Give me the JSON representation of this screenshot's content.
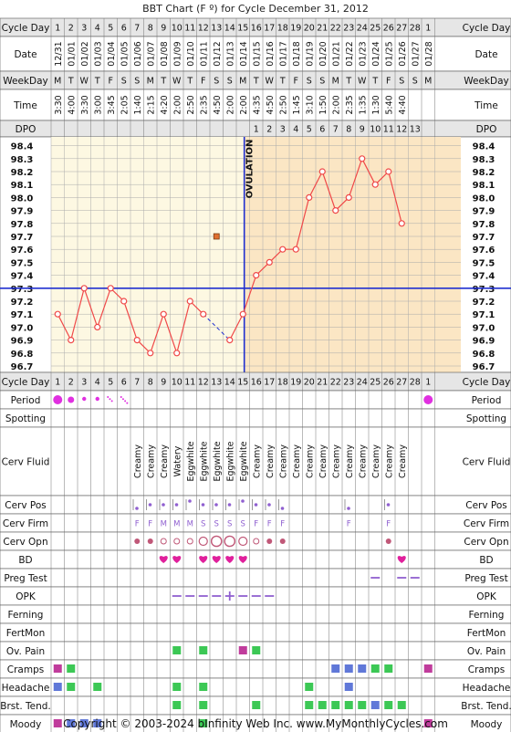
{
  "title": "BBT Chart (F º) for Cycle December 31, 2012",
  "copyright": "Copyright © 2003-2024 bInfinity Web Inc.    www.MyMonthlyCycles.com",
  "labels": {
    "cycle_day": "Cycle Day",
    "date": "Date",
    "weekday": "WeekDay",
    "time": "Time",
    "dpo": "DPO",
    "period": "Period",
    "spotting": "Spotting",
    "cerv_fluid": "Cerv Fluid",
    "cerv_pos": "Cerv Pos",
    "cerv_firm": "Cerv Firm",
    "cerv_opn": "Cerv Opn",
    "bd": "BD",
    "preg_test": "Preg Test",
    "opk": "OPK",
    "ferning": "Ferning",
    "fertmon": "FertMon",
    "ov_pain": "Ov. Pain",
    "cramps": "Cramps",
    "headache": "Headache",
    "brst_tend": "Brst. Tend.",
    "moody": "Moody",
    "ovulation": "OVULATION"
  },
  "colors": {
    "grid_bg": "#fdf8e2",
    "post_ov_bg": "#fbe6c4",
    "header_bg": "#e6e6e6",
    "temp_line": "#f04848",
    "coverline": "#2030d0",
    "ov_line": "#2030d0",
    "green": "#3cc855",
    "purple": "#c03c9c",
    "blue": "#6078d8",
    "period": "#e030e0",
    "heart": "#e0209c",
    "lilac": "#9060d0",
    "orange": "#e07030"
  },
  "days": [
    "1",
    "2",
    "3",
    "4",
    "5",
    "6",
    "7",
    "8",
    "9",
    "10",
    "11",
    "12",
    "13",
    "14",
    "15",
    "16",
    "17",
    "18",
    "19",
    "20",
    "21",
    "22",
    "23",
    "24",
    "25",
    "26",
    "27",
    "28",
    "1"
  ],
  "dates": [
    "12/31",
    "01/01",
    "01/02",
    "01/03",
    "01/04",
    "01/05",
    "01/06",
    "01/07",
    "01/08",
    "01/09",
    "01/10",
    "01/11",
    "01/12",
    "01/13",
    "01/14",
    "01/15",
    "01/16",
    "01/17",
    "01/18",
    "01/19",
    "01/20",
    "01/21",
    "01/22",
    "01/23",
    "01/24",
    "01/25",
    "01/26",
    "01/27",
    "01/28"
  ],
  "weekdays": [
    "M",
    "T",
    "W",
    "T",
    "F",
    "S",
    "S",
    "M",
    "T",
    "W",
    "T",
    "F",
    "S",
    "S",
    "M",
    "T",
    "W",
    "T",
    "F",
    "S",
    "S",
    "M",
    "T",
    "W",
    "T",
    "F",
    "S",
    "S",
    "M"
  ],
  "times": [
    "3:30",
    "4:00",
    "3:30",
    "3:00",
    "3:45",
    "2:05",
    "1:40",
    "2:15",
    "4:20",
    "2:00",
    "2:50",
    "2:35",
    "4:50",
    "2:00",
    "2:00",
    "4:35",
    "4:50",
    "2:50",
    "1:45",
    "3:10",
    "1:50",
    "2:00",
    "2:35",
    "1:35",
    "1:30",
    "5:40",
    "4:40",
    "",
    ""
  ],
  "dpo": [
    "",
    "",
    "",
    "",
    "",
    "",
    "",
    "",
    "",
    "",
    "",
    "",
    "",
    "",
    "",
    "1",
    "2",
    "3",
    "4",
    "5",
    "6",
    "7",
    "8",
    "9",
    "10",
    "11",
    "12",
    "13",
    ""
  ],
  "cerv_fluid": [
    "",
    "",
    "",
    "",
    "",
    "",
    "Creamy",
    "Creamy",
    "Creamy",
    "Watery",
    "Eggwhite",
    "Eggwhite",
    "Eggwhite",
    "Eggwhite",
    "Eggwhite",
    "Creamy",
    "Creamy",
    "Creamy",
    "Creamy",
    "Creamy",
    "Creamy",
    "Creamy",
    "Creamy",
    "Creamy",
    "Creamy",
    "Creamy",
    "Creamy",
    "",
    ""
  ],
  "cerv_firm": [
    "",
    "",
    "",
    "",
    "",
    "",
    "F",
    "F",
    "M",
    "M",
    "M",
    "S",
    "S",
    "S",
    "S",
    "F",
    "F",
    "F",
    "",
    "",
    "",
    "",
    "F",
    "",
    "",
    "F",
    "",
    "",
    ""
  ],
  "period": [
    3,
    2,
    1,
    1,
    4,
    5,
    0,
    0,
    0,
    0,
    0,
    0,
    0,
    0,
    0,
    0,
    0,
    0,
    0,
    0,
    0,
    0,
    0,
    0,
    0,
    0,
    0,
    0,
    3
  ],
  "cerv_pos": [
    0,
    0,
    0,
    0,
    0,
    0,
    1,
    2,
    2,
    2,
    3,
    2,
    2,
    2,
    3,
    2,
    2,
    1,
    0,
    0,
    0,
    0,
    1,
    0,
    0,
    2,
    0,
    0,
    0
  ],
  "cerv_opn": [
    0,
    0,
    0,
    0,
    0,
    0,
    1,
    1,
    2,
    2,
    2,
    3,
    4,
    4,
    3,
    2,
    1,
    1,
    0,
    0,
    0,
    0,
    0,
    0,
    0,
    1,
    0,
    0,
    0
  ],
  "bd": [
    9,
    10,
    12,
    13,
    14,
    15,
    27
  ],
  "preg_test": [
    25,
    27,
    28
  ],
  "opk": [
    "",
    "",
    "",
    "",
    "",
    "",
    "",
    "",
    "",
    "-",
    "-",
    "-",
    "-",
    "+",
    "-",
    "-",
    "-",
    "",
    "",
    "",
    "",
    "",
    "",
    "",
    "",
    "",
    "",
    "",
    ""
  ],
  "ov_pain": {
    "green": [
      10,
      12,
      16
    ],
    "purple": [
      15
    ]
  },
  "cramps": {
    "purple": [
      1,
      29
    ],
    "green": [
      2,
      25,
      26
    ],
    "blue": [
      22,
      23,
      24
    ]
  },
  "headache": {
    "blue": [
      1,
      23
    ],
    "green": [
      2,
      4,
      10,
      12,
      20
    ],
    "purple": []
  },
  "brst_tend": {
    "green": [
      10,
      12,
      16,
      20,
      21,
      22,
      23,
      24,
      26,
      27
    ],
    "blue": [
      25
    ],
    "purple": []
  },
  "moody": {
    "purple": [
      1,
      29
    ],
    "blue": [
      2,
      3,
      4
    ],
    "green": [
      12
    ]
  },
  "chart_data": {
    "type": "line",
    "title": "BBT Chart (F º) for Cycle December 31, 2012",
    "x": [
      1,
      2,
      3,
      4,
      5,
      6,
      7,
      8,
      9,
      10,
      11,
      12,
      13,
      14,
      15,
      16,
      17,
      18,
      19,
      20,
      21,
      22,
      23,
      24,
      25,
      26,
      27
    ],
    "series": [
      {
        "values": [
          97.1,
          96.9,
          97.3,
          97.0,
          97.3,
          97.2,
          96.9,
          96.8,
          97.1,
          96.8,
          97.2,
          97.1,
          null,
          96.9,
          97.1,
          97.4,
          97.5,
          97.6,
          97.6,
          98.0,
          98.2,
          97.9,
          98.0,
          98.3,
          98.1,
          98.2,
          97.8
        ]
      }
    ],
    "discarded": [
      {
        "x": 13,
        "y": 97.7
      }
    ],
    "coverline": 97.3,
    "ovulation_day": 15,
    "ylim": [
      96.7,
      98.4
    ],
    "yticks": [
      "98.4",
      "98.3",
      "98.2",
      "98.1",
      "98.0",
      "97.9",
      "97.8",
      "97.7",
      "97.6",
      "97.5",
      "97.4",
      "97.3",
      "97.2",
      "97.1",
      "97.0",
      "96.9",
      "96.8",
      "96.7"
    ],
    "grid": true
  }
}
